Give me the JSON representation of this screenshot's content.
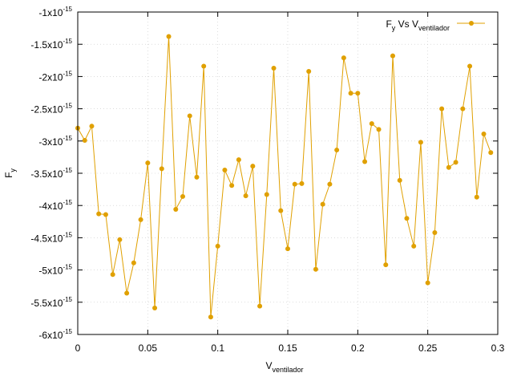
{
  "chart_data": {
    "type": "line",
    "title": "",
    "xlabel": "V",
    "xlabel_sub": "ventilador",
    "ylabel": "F",
    "ylabel_sub": "y",
    "xlim": [
      0,
      0.3
    ],
    "ylim": [
      -6e-15,
      -1e-15
    ],
    "grid": true,
    "legend_position": "top-right",
    "color": "#e0a000",
    "x_ticks": [
      {
        "value": 0,
        "label": "0"
      },
      {
        "value": 0.05,
        "label": "0.05"
      },
      {
        "value": 0.1,
        "label": "0.1"
      },
      {
        "value": 0.15,
        "label": "0.15"
      },
      {
        "value": 0.2,
        "label": "0.2"
      },
      {
        "value": 0.25,
        "label": "0.25"
      },
      {
        "value": 0.3,
        "label": "0.3"
      }
    ],
    "y_ticks": [
      {
        "value": -1e-15,
        "mantissa": "-1x10",
        "exp": "-15"
      },
      {
        "value": -1.5e-15,
        "mantissa": "-1.5x10",
        "exp": "-15"
      },
      {
        "value": -2e-15,
        "mantissa": "-2x10",
        "exp": "-15"
      },
      {
        "value": -2.5e-15,
        "mantissa": "-2.5x10",
        "exp": "-15"
      },
      {
        "value": -3e-15,
        "mantissa": "-3x10",
        "exp": "-15"
      },
      {
        "value": -3.5e-15,
        "mantissa": "-3.5x10",
        "exp": "-15"
      },
      {
        "value": -4e-15,
        "mantissa": "-4x10",
        "exp": "-15"
      },
      {
        "value": -4.5e-15,
        "mantissa": "-4.5x10",
        "exp": "-15"
      },
      {
        "value": -5e-15,
        "mantissa": "-5x10",
        "exp": "-15"
      },
      {
        "value": -5.5e-15,
        "mantissa": "-5.5x10",
        "exp": "-15"
      },
      {
        "value": -6e-15,
        "mantissa": "-6x10",
        "exp": "-15"
      }
    ],
    "series": [
      {
        "legend_parts": [
          {
            "text": "F",
            "sub": false
          },
          {
            "text": "y",
            "sub": true
          },
          {
            "text": " Vs V",
            "sub": false
          },
          {
            "text": "ventilador",
            "sub": true
          }
        ],
        "x": [
          0,
          0.005,
          0.01,
          0.015,
          0.02,
          0.025,
          0.03,
          0.035,
          0.04,
          0.045,
          0.05,
          0.055,
          0.06,
          0.065,
          0.07,
          0.075,
          0.08,
          0.085,
          0.09,
          0.095,
          0.1,
          0.105,
          0.11,
          0.115,
          0.12,
          0.125,
          0.13,
          0.135,
          0.14,
          0.145,
          0.15,
          0.155,
          0.16,
          0.165,
          0.17,
          0.175,
          0.18,
          0.185,
          0.19,
          0.195,
          0.2,
          0.205,
          0.21,
          0.215,
          0.22,
          0.225,
          0.23,
          0.235,
          0.24,
          0.245,
          0.25,
          0.255,
          0.26,
          0.265,
          0.27,
          0.275,
          0.28,
          0.285,
          0.29,
          0.295
        ],
        "y": [
          -2.8e-15,
          -2.99e-15,
          -2.77e-15,
          -4.13e-15,
          -4.14e-15,
          -5.07e-15,
          -4.53e-15,
          -5.36e-15,
          -4.89e-15,
          -4.22e-15,
          -3.34e-15,
          -5.59e-15,
          -3.43e-15,
          -1.38e-15,
          -4.06e-15,
          -3.86e-15,
          -2.61e-15,
          -3.56e-15,
          -1.84e-15,
          -5.73e-15,
          -4.63e-15,
          -3.45e-15,
          -3.69e-15,
          -3.29e-15,
          -3.85e-15,
          -3.39e-15,
          -5.56e-15,
          -3.83e-15,
          -1.87e-15,
          -4.08e-15,
          -4.67e-15,
          -3.67e-15,
          -3.66e-15,
          -1.92e-15,
          -4.99e-15,
          -3.98e-15,
          -3.67e-15,
          -3.14e-15,
          -1.71e-15,
          -2.26e-15,
          -2.26e-15,
          -3.32e-15,
          -2.73e-15,
          -2.82e-15,
          -4.92e-15,
          -1.68e-15,
          -3.61e-15,
          -4.2e-15,
          -4.63e-15,
          -3.02e-15,
          -5.2e-15,
          -4.42e-15,
          -2.5e-15,
          -3.41e-15,
          -3.33e-15,
          -2.5e-15,
          -1.84e-15,
          -3.87e-15,
          -2.89e-15,
          -3.18e-15
        ]
      }
    ]
  }
}
